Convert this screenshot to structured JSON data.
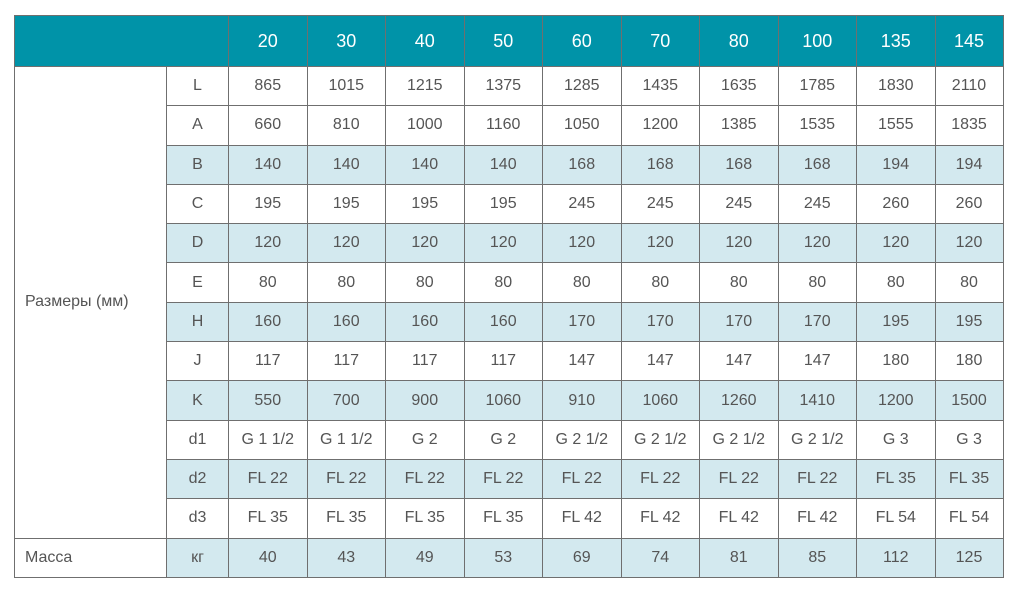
{
  "colors": {
    "header": "#0093a8",
    "shaded_row": "#d3e9ef"
  },
  "header": [
    "20",
    "30",
    "40",
    "50",
    "60",
    "70",
    "80",
    "100",
    "135",
    "145"
  ],
  "group_label": "Размеры (мм)",
  "rows": [
    {
      "param": "L",
      "values": [
        "865",
        "1015",
        "1215",
        "1375",
        "1285",
        "1435",
        "1635",
        "1785",
        "1830",
        "2110"
      ],
      "shaded": false
    },
    {
      "param": "A",
      "values": [
        "660",
        "810",
        "1000",
        "1160",
        "1050",
        "1200",
        "1385",
        "1535",
        "1555",
        "1835"
      ],
      "shaded": false
    },
    {
      "param": "B",
      "values": [
        "140",
        "140",
        "140",
        "140",
        "168",
        "168",
        "168",
        "168",
        "194",
        "194"
      ],
      "shaded": true
    },
    {
      "param": "C",
      "values": [
        "195",
        "195",
        "195",
        "195",
        "245",
        "245",
        "245",
        "245",
        "260",
        "260"
      ],
      "shaded": false
    },
    {
      "param": "D",
      "values": [
        "120",
        "120",
        "120",
        "120",
        "120",
        "120",
        "120",
        "120",
        "120",
        "120"
      ],
      "shaded": true
    },
    {
      "param": "E",
      "values": [
        "80",
        "80",
        "80",
        "80",
        "80",
        "80",
        "80",
        "80",
        "80",
        "80"
      ],
      "shaded": false
    },
    {
      "param": "H",
      "values": [
        "160",
        "160",
        "160",
        "160",
        "170",
        "170",
        "170",
        "170",
        "195",
        "195"
      ],
      "shaded": true
    },
    {
      "param": "J",
      "values": [
        "117",
        "117",
        "117",
        "117",
        "147",
        "147",
        "147",
        "147",
        "180",
        "180"
      ],
      "shaded": false
    },
    {
      "param": "K",
      "values": [
        "550",
        "700",
        "900",
        "1060",
        "910",
        "1060",
        "1260",
        "1410",
        "1200",
        "1500"
      ],
      "shaded": true
    },
    {
      "param": "d1",
      "values": [
        "G 1 1/2",
        "G 1 1/2",
        "G 2",
        "G 2",
        "G 2 1/2",
        "G 2 1/2",
        "G 2 1/2",
        "G 2 1/2",
        "G 3",
        "G 3"
      ],
      "shaded": false
    },
    {
      "param": "d2",
      "values": [
        "FL 22",
        "FL 22",
        "FL 22",
        "FL 22",
        "FL 22",
        "FL 22",
        "FL 22",
        "FL 22",
        "FL 35",
        "FL 35"
      ],
      "shaded": true
    },
    {
      "param": "d3",
      "values": [
        "FL 35",
        "FL 35",
        "FL 35",
        "FL 35",
        "FL 42",
        "FL 42",
        "FL 42",
        "FL 42",
        "FL 54",
        "FL 54"
      ],
      "shaded": false
    }
  ],
  "mass": {
    "label": "Масса",
    "unit": "кг",
    "values": [
      "40",
      "43",
      "49",
      "53",
      "69",
      "74",
      "81",
      "85",
      "112",
      "125"
    ]
  }
}
